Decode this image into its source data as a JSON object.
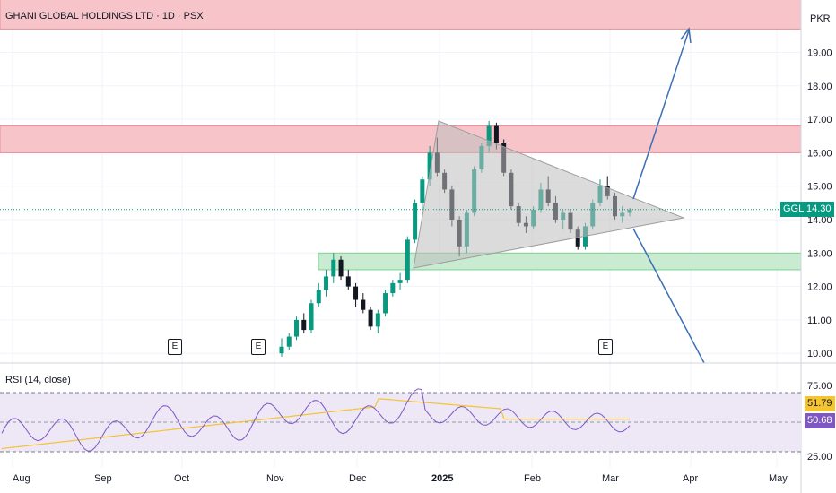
{
  "chart": {
    "title": "GHANI GLOBAL HOLDINGS LTD · 1D · PSX",
    "currency": "PKR",
    "symbol": "GGL",
    "last_price": "14.30",
    "price_ticks": [
      "19.00",
      "18.00",
      "17.00",
      "16.00",
      "15.00",
      "14.00",
      "13.00",
      "12.00",
      "11.00",
      "10.00"
    ],
    "time_ticks": [
      "Aug",
      "Sep",
      "Oct",
      "Nov",
      "Dec",
      "2025",
      "Feb",
      "Mar",
      "Apr",
      "May"
    ],
    "earnings_marker": "E",
    "colors": {
      "up": "#089981",
      "down": "#131722",
      "resistance": "#f7c5c9",
      "support": "#c8ebd1",
      "triangle": "#bdbdbd",
      "arrow": "#3b6fb6",
      "rsi": "#7e57c2",
      "rsi_ma": "#f5c431",
      "rsi_band": "#ede7f6"
    }
  },
  "rsi_panel": {
    "title": "RSI (14, close)",
    "ticks": [
      "75.00",
      "25.00"
    ],
    "rsi_value": "50.68",
    "ma_value": "51.79"
  },
  "chart_data": {
    "type": "candlestick",
    "title": "GHANI GLOBAL HOLDINGS LTD · 1D · PSX",
    "ylabel": "PKR",
    "ylim": [
      9.8,
      20.6
    ],
    "x_ticks": [
      "Aug",
      "Sep",
      "Oct",
      "Nov",
      "Dec",
      "2025",
      "Feb",
      "Mar",
      "Apr",
      "May"
    ],
    "last_price": 14.3,
    "zones": [
      {
        "kind": "resistance",
        "low": 19.7,
        "high": 20.6
      },
      {
        "kind": "resistance",
        "low": 16.0,
        "high": 16.8
      },
      {
        "kind": "support",
        "low": 12.5,
        "high": 13.0
      }
    ],
    "triangle": [
      [
        13.0,
        16.95
      ],
      [
        13.0,
        12.55
      ],
      [
        14.0,
        14.0
      ]
    ],
    "candles_ohlc": [
      [
        10.0,
        10.45,
        9.9,
        10.2
      ],
      [
        10.2,
        10.6,
        10.1,
        10.5
      ],
      [
        10.5,
        11.1,
        10.4,
        11.0
      ],
      [
        11.0,
        11.2,
        10.6,
        10.7
      ],
      [
        10.7,
        11.6,
        10.6,
        11.5
      ],
      [
        11.5,
        12.1,
        11.4,
        11.9
      ],
      [
        11.9,
        12.5,
        11.7,
        12.3
      ],
      [
        12.3,
        13.0,
        12.1,
        12.8
      ],
      [
        12.8,
        12.9,
        12.2,
        12.3
      ],
      [
        12.3,
        12.5,
        11.9,
        12.0
      ],
      [
        12.0,
        12.1,
        11.4,
        11.6
      ],
      [
        11.6,
        11.8,
        11.2,
        11.3
      ],
      [
        11.3,
        11.4,
        10.7,
        10.8
      ],
      [
        10.8,
        11.3,
        10.6,
        11.2
      ],
      [
        11.2,
        11.9,
        11.1,
        11.8
      ],
      [
        11.8,
        12.2,
        11.7,
        12.1
      ],
      [
        12.1,
        12.4,
        11.9,
        12.2
      ],
      [
        12.2,
        13.5,
        12.1,
        13.4
      ],
      [
        13.4,
        14.6,
        13.3,
        14.5
      ],
      [
        14.5,
        15.3,
        14.3,
        15.2
      ],
      [
        15.2,
        16.2,
        15.0,
        16.0
      ],
      [
        16.0,
        16.45,
        15.3,
        15.4
      ],
      [
        15.4,
        15.5,
        14.8,
        14.9
      ],
      [
        14.9,
        15.0,
        13.8,
        14.0
      ],
      [
        14.0,
        14.1,
        12.9,
        13.2
      ],
      [
        13.2,
        14.3,
        13.0,
        14.2
      ],
      [
        14.2,
        15.6,
        14.1,
        15.5
      ],
      [
        15.5,
        16.3,
        15.4,
        16.2
      ],
      [
        16.2,
        16.95,
        16.0,
        16.8
      ],
      [
        16.8,
        16.9,
        16.1,
        16.3
      ],
      [
        16.3,
        16.4,
        15.3,
        15.4
      ],
      [
        15.4,
        15.5,
        14.3,
        14.4
      ],
      [
        14.4,
        14.5,
        13.8,
        13.9
      ],
      [
        13.9,
        14.1,
        13.6,
        13.8
      ],
      [
        13.8,
        14.4,
        13.7,
        14.3
      ],
      [
        14.3,
        15.1,
        14.2,
        14.9
      ],
      [
        14.9,
        15.3,
        14.4,
        14.5
      ],
      [
        14.5,
        14.7,
        13.9,
        14.0
      ],
      [
        14.0,
        14.3,
        13.7,
        14.2
      ],
      [
        14.2,
        14.3,
        13.6,
        13.7
      ],
      [
        13.7,
        13.8,
        13.1,
        13.2
      ],
      [
        13.2,
        13.9,
        13.1,
        13.8
      ],
      [
        13.8,
        14.6,
        13.7,
        14.5
      ],
      [
        14.5,
        15.2,
        14.4,
        15.0
      ],
      [
        15.0,
        15.3,
        14.6,
        14.7
      ],
      [
        14.7,
        14.8,
        14.0,
        14.1
      ],
      [
        14.1,
        14.4,
        13.9,
        14.2
      ],
      [
        14.2,
        14.35,
        14.1,
        14.3
      ]
    ],
    "rsi": {
      "name": "RSI (14, close)",
      "last": 50.68,
      "ma_last": 51.79,
      "bands": [
        30,
        70
      ],
      "ylim": [
        25,
        75
      ]
    }
  }
}
